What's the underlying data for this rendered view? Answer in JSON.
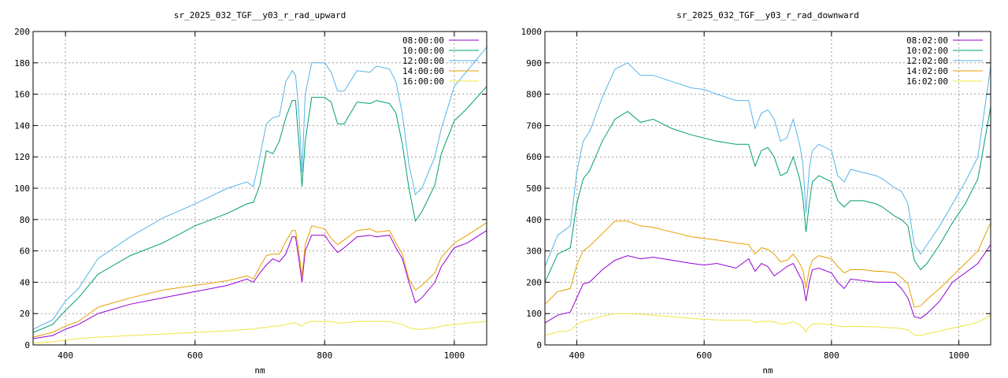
{
  "chart_data": [
    {
      "type": "line",
      "title": "sr_2025_032_TGF__y03_r_rad_upward",
      "xlabel": "nm",
      "ylabel": "",
      "xlim": [
        350,
        1050
      ],
      "ylim": [
        0,
        200
      ],
      "xticks": [
        400,
        600,
        800,
        1000
      ],
      "yticks": [
        0,
        20,
        40,
        60,
        80,
        100,
        120,
        140,
        160,
        180,
        200
      ],
      "grid": true,
      "legend": "top-right",
      "series": [
        {
          "name": "08:00:00",
          "color": "#9400d3",
          "x": [
            350,
            380,
            400,
            420,
            450,
            500,
            550,
            600,
            650,
            680,
            690,
            700,
            710,
            720,
            730,
            740,
            750,
            755,
            760,
            765,
            770,
            780,
            800,
            810,
            820,
            830,
            850,
            870,
            880,
            900,
            910,
            920,
            930,
            940,
            950,
            970,
            980,
            1000,
            1020,
            1050
          ],
          "y": [
            4,
            6,
            10,
            13,
            20,
            26,
            30,
            34,
            38,
            42,
            40,
            46,
            51,
            55,
            53,
            58,
            69,
            69,
            55,
            40,
            60,
            70,
            70,
            64,
            59,
            62,
            69,
            70,
            69,
            70,
            62,
            55,
            40,
            27,
            30,
            40,
            50,
            62,
            65,
            73
          ]
        },
        {
          "name": "10:00:00",
          "color": "#009e73",
          "x": [
            350,
            380,
            400,
            420,
            450,
            500,
            550,
            600,
            650,
            680,
            690,
            700,
            710,
            720,
            730,
            740,
            750,
            755,
            760,
            765,
            770,
            780,
            800,
            810,
            820,
            830,
            850,
            870,
            880,
            900,
            910,
            920,
            930,
            940,
            950,
            970,
            980,
            1000,
            1020,
            1050
          ],
          "y": [
            8,
            13,
            22,
            30,
            45,
            57,
            65,
            76,
            84,
            90,
            91,
            102,
            124,
            122,
            130,
            145,
            156,
            156,
            130,
            101,
            130,
            158,
            158,
            155,
            141,
            141,
            155,
            154,
            156,
            154,
            148,
            128,
            100,
            79,
            85,
            102,
            122,
            143,
            151,
            165
          ]
        },
        {
          "name": "12:00:00",
          "color": "#56b4e9",
          "x": [
            350,
            380,
            400,
            420,
            450,
            500,
            550,
            600,
            650,
            680,
            690,
            700,
            710,
            720,
            730,
            740,
            750,
            755,
            760,
            765,
            770,
            780,
            800,
            810,
            820,
            830,
            850,
            870,
            880,
            900,
            910,
            920,
            930,
            940,
            950,
            970,
            980,
            1000,
            1020,
            1050
          ],
          "y": [
            10,
            16,
            28,
            36,
            55,
            69,
            81,
            90,
            100,
            104,
            101,
            120,
            141,
            145,
            146,
            168,
            175,
            172,
            150,
            110,
            160,
            180,
            180,
            174,
            162,
            162,
            175,
            174,
            178,
            176,
            168,
            147,
            115,
            96,
            100,
            120,
            138,
            165,
            175,
            190
          ]
        },
        {
          "name": "14:00:00",
          "color": "#e69f00",
          "x": [
            350,
            380,
            400,
            420,
            450,
            500,
            550,
            600,
            650,
            680,
            690,
            700,
            710,
            720,
            730,
            740,
            750,
            755,
            760,
            765,
            770,
            780,
            800,
            810,
            820,
            830,
            850,
            870,
            880,
            900,
            910,
            920,
            930,
            940,
            950,
            970,
            980,
            1000,
            1020,
            1050
          ],
          "y": [
            5,
            8,
            12,
            15,
            24,
            30,
            35,
            38,
            41,
            44,
            42,
            50,
            57,
            58,
            58,
            66,
            73,
            73,
            60,
            44,
            64,
            76,
            74,
            68,
            64,
            67,
            73,
            74,
            72,
            73,
            65,
            58,
            42,
            35,
            38,
            46,
            56,
            65,
            70,
            78
          ]
        },
        {
          "name": "16:00:00",
          "color": "#f0e442",
          "x": [
            350,
            380,
            400,
            420,
            450,
            500,
            550,
            600,
            650,
            680,
            690,
            700,
            710,
            720,
            730,
            740,
            750,
            755,
            760,
            765,
            770,
            780,
            800,
            810,
            820,
            830,
            850,
            870,
            880,
            900,
            910,
            920,
            930,
            940,
            950,
            970,
            980,
            1000,
            1020,
            1050
          ],
          "y": [
            1,
            2,
            3,
            4,
            5,
            6,
            7,
            8,
            9,
            10,
            10,
            11,
            11,
            12,
            12,
            13,
            14,
            14,
            13,
            12,
            14,
            15,
            15,
            15,
            14,
            14,
            15,
            15,
            15,
            15,
            14,
            13,
            11,
            10,
            10,
            11,
            12,
            13,
            14,
            15
          ]
        }
      ]
    },
    {
      "type": "line",
      "title": "sr_2025_032_TGF__y03_r_rad_downward",
      "xlabel": "nm",
      "ylabel": "",
      "xlim": [
        350,
        1050
      ],
      "ylim": [
        0,
        1000
      ],
      "xticks": [
        400,
        600,
        800,
        1000
      ],
      "yticks": [
        0,
        100,
        200,
        300,
        400,
        500,
        600,
        700,
        800,
        900,
        1000
      ],
      "grid": true,
      "legend": "top-right",
      "series": [
        {
          "name": "08:02:00",
          "color": "#9400d3",
          "x": [
            350,
            370,
            390,
            400,
            410,
            420,
            440,
            460,
            480,
            500,
            520,
            550,
            580,
            600,
            620,
            650,
            670,
            680,
            690,
            700,
            710,
            720,
            730,
            740,
            750,
            755,
            760,
            765,
            770,
            780,
            800,
            810,
            820,
            830,
            850,
            870,
            880,
            900,
            910,
            920,
            930,
            940,
            950,
            970,
            990,
            1010,
            1030,
            1050
          ],
          "y": [
            70,
            95,
            105,
            150,
            195,
            200,
            240,
            270,
            285,
            275,
            280,
            270,
            260,
            255,
            260,
            245,
            275,
            235,
            260,
            250,
            220,
            235,
            250,
            260,
            220,
            200,
            140,
            200,
            240,
            245,
            230,
            200,
            180,
            210,
            205,
            200,
            200,
            200,
            180,
            150,
            90,
            85,
            100,
            140,
            200,
            230,
            260,
            320
          ]
        },
        {
          "name": "10:02:00",
          "color": "#009e73",
          "x": [
            350,
            370,
            390,
            400,
            410,
            420,
            440,
            460,
            480,
            500,
            520,
            550,
            580,
            600,
            620,
            650,
            670,
            680,
            690,
            700,
            710,
            720,
            730,
            740,
            750,
            755,
            760,
            765,
            770,
            780,
            800,
            810,
            820,
            830,
            850,
            870,
            880,
            900,
            910,
            920,
            930,
            940,
            950,
            970,
            990,
            1010,
            1030,
            1050
          ],
          "y": [
            200,
            290,
            310,
            450,
            530,
            555,
            650,
            720,
            745,
            710,
            720,
            690,
            670,
            660,
            650,
            640,
            640,
            570,
            620,
            630,
            600,
            540,
            550,
            600,
            530,
            470,
            360,
            450,
            520,
            540,
            520,
            460,
            440,
            460,
            460,
            450,
            440,
            410,
            400,
            380,
            270,
            240,
            260,
            320,
            390,
            450,
            530,
            760
          ]
        },
        {
          "name": "12:02:00",
          "color": "#56b4e9",
          "x": [
            350,
            370,
            390,
            400,
            410,
            420,
            440,
            460,
            480,
            500,
            520,
            550,
            580,
            600,
            620,
            650,
            670,
            680,
            690,
            700,
            710,
            720,
            730,
            740,
            750,
            755,
            760,
            765,
            770,
            780,
            800,
            810,
            820,
            830,
            850,
            870,
            880,
            900,
            910,
            920,
            930,
            940,
            950,
            970,
            990,
            1010,
            1030,
            1050
          ],
          "y": [
            250,
            350,
            380,
            550,
            650,
            680,
            790,
            880,
            900,
            860,
            860,
            840,
            820,
            815,
            800,
            780,
            780,
            690,
            740,
            750,
            720,
            650,
            660,
            720,
            640,
            580,
            420,
            560,
            620,
            640,
            620,
            540,
            520,
            560,
            550,
            540,
            530,
            500,
            490,
            450,
            320,
            290,
            320,
            380,
            450,
            520,
            600,
            890
          ]
        },
        {
          "name": "14:02:00",
          "color": "#e69f00",
          "x": [
            350,
            370,
            390,
            400,
            410,
            420,
            440,
            460,
            480,
            500,
            520,
            550,
            580,
            600,
            620,
            650,
            670,
            680,
            690,
            700,
            710,
            720,
            730,
            740,
            750,
            755,
            760,
            765,
            770,
            780,
            800,
            810,
            820,
            830,
            850,
            870,
            880,
            900,
            910,
            920,
            930,
            940,
            950,
            970,
            990,
            1010,
            1030,
            1050
          ],
          "y": [
            130,
            170,
            180,
            255,
            300,
            315,
            355,
            395,
            395,
            380,
            375,
            360,
            345,
            340,
            335,
            325,
            320,
            290,
            310,
            305,
            290,
            265,
            270,
            290,
            260,
            240,
            180,
            240,
            270,
            285,
            275,
            250,
            230,
            240,
            240,
            235,
            235,
            230,
            215,
            195,
            120,
            125,
            145,
            180,
            220,
            260,
            300,
            390
          ]
        },
        {
          "name": "16:02:00",
          "color": "#f0e442",
          "x": [
            350,
            370,
            390,
            400,
            410,
            420,
            440,
            460,
            480,
            500,
            520,
            550,
            580,
            600,
            620,
            650,
            670,
            680,
            690,
            700,
            710,
            720,
            730,
            740,
            750,
            755,
            760,
            765,
            770,
            780,
            800,
            810,
            820,
            830,
            850,
            870,
            880,
            900,
            910,
            920,
            930,
            940,
            950,
            970,
            990,
            1010,
            1030,
            1050
          ],
          "y": [
            30,
            42,
            46,
            65,
            75,
            80,
            92,
            100,
            100,
            98,
            95,
            90,
            85,
            82,
            80,
            78,
            80,
            72,
            75,
            76,
            74,
            66,
            68,
            74,
            64,
            55,
            42,
            58,
            66,
            68,
            64,
            60,
            58,
            60,
            58,
            58,
            56,
            54,
            52,
            48,
            32,
            30,
            36,
            44,
            54,
            62,
            72,
            94
          ]
        }
      ]
    }
  ]
}
